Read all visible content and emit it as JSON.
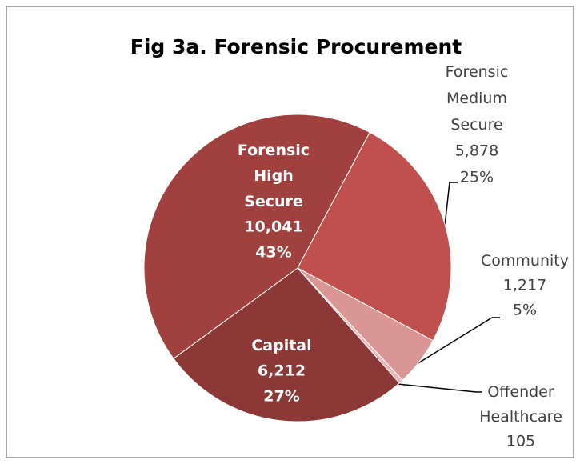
{
  "chart_data": {
    "type": "pie",
    "title": "Fig 3a. Forensic Procurement",
    "categories": [
      "Forensic Medium Secure",
      "Community",
      "Offender Healthcare",
      "Capital",
      "Forensic High Secure"
    ],
    "values": [
      5878,
      1217,
      105,
      6212,
      10041
    ],
    "value_labels": [
      "5,878",
      "1,217",
      "105",
      "6,212",
      "10,041"
    ],
    "percent_labels": [
      "25%",
      "5%",
      null,
      "27%",
      "43%"
    ],
    "colors": [
      "#c0504d",
      "#d99694",
      "#e6b9b8",
      "#8c3836",
      "#a0413f"
    ]
  }
}
